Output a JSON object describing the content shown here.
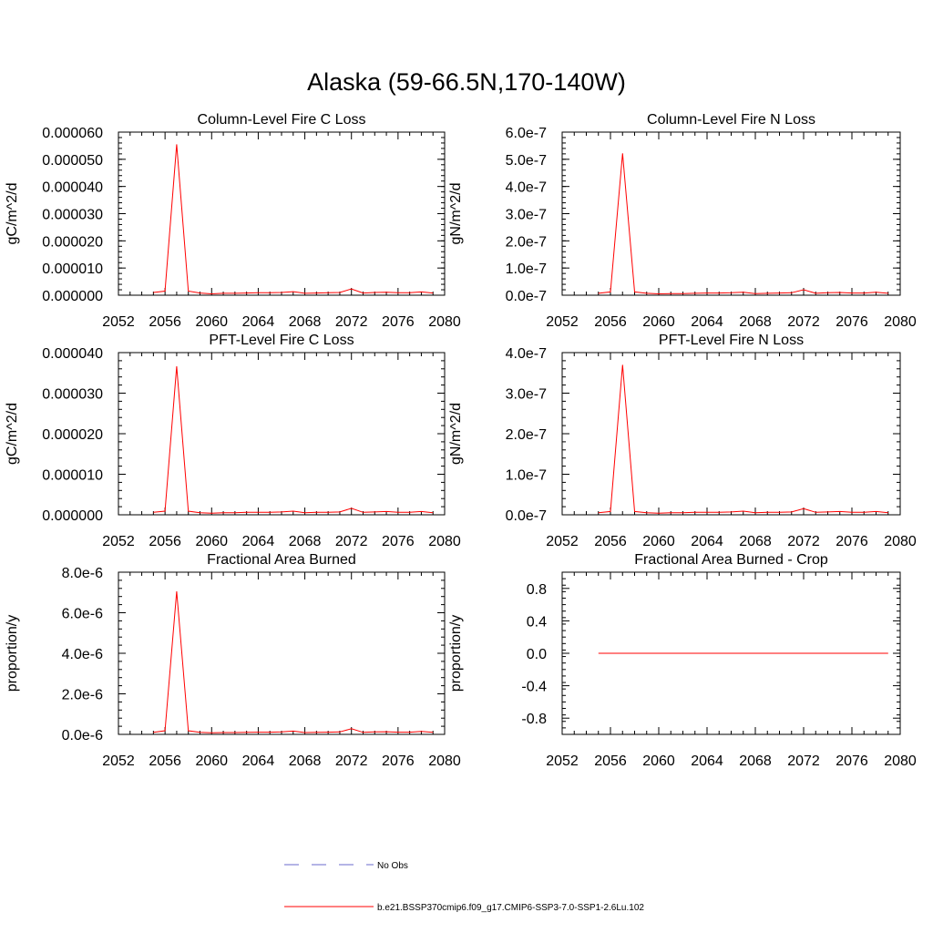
{
  "figure": {
    "title": "Alaska (59-66.5N,170-140W)",
    "legend": [
      {
        "label": "No Obs",
        "color": "#6a6acd",
        "style": "dashed"
      },
      {
        "label": "b.e21.BSSP370cmip6.f09_g17.CMIP6-SSP3-7.0-SSP1-2.6Lu.102",
        "color": "#ff0000",
        "style": "solid"
      }
    ]
  },
  "chart_data": [
    {
      "type": "line",
      "title": "Column-Level Fire C Loss",
      "ylabel": "gC/m^2/d",
      "xlim": [
        2052,
        2080
      ],
      "xticks": [
        "2052",
        "2056",
        "2060",
        "2064",
        "2068",
        "2072",
        "2076",
        "2080"
      ],
      "ylim": [
        0,
        6e-05
      ],
      "yticks": [
        "0.000000",
        "0.000010",
        "0.000020",
        "0.000030",
        "0.000040",
        "0.000050",
        "0.000060"
      ],
      "series": [
        {
          "color": "#ff0000",
          "x": [
            2055,
            2056,
            2057,
            2058,
            2059,
            2060,
            2061,
            2062,
            2063,
            2064,
            2065,
            2066,
            2067,
            2068,
            2069,
            2070,
            2071,
            2072,
            2073,
            2074,
            2075,
            2076,
            2077,
            2078,
            2079
          ],
          "y": [
            1e-06,
            1.5e-06,
            5.55e-05,
            1.5e-06,
            8e-07,
            5e-07,
            7e-07,
            7e-07,
            8e-07,
            9e-07,
            9e-07,
            1e-06,
            1.3e-06,
            7e-07,
            8e-07,
            9e-07,
            1e-06,
            2.3e-06,
            8e-07,
            1e-06,
            1.1e-06,
            9e-07,
            9e-07,
            1.2e-06,
            8e-07
          ]
        }
      ]
    },
    {
      "type": "line",
      "title": "Column-Level Fire N Loss",
      "ylabel": "gN/m^2/d",
      "xlim": [
        2052,
        2080
      ],
      "xticks": [
        "2052",
        "2056",
        "2060",
        "2064",
        "2068",
        "2072",
        "2076",
        "2080"
      ],
      "ylim": [
        0,
        6e-07
      ],
      "yticks": [
        "0.0e-7",
        "1.0e-7",
        "2.0e-7",
        "3.0e-7",
        "4.0e-7",
        "5.0e-7",
        "6.0e-7"
      ],
      "series": [
        {
          "color": "#ff0000",
          "x": [
            2055,
            2056,
            2057,
            2058,
            2059,
            2060,
            2061,
            2062,
            2063,
            2064,
            2065,
            2066,
            2067,
            2068,
            2069,
            2070,
            2071,
            2072,
            2073,
            2074,
            2075,
            2076,
            2077,
            2078,
            2079
          ],
          "y": [
            7e-09,
            1.2e-08,
            5.22e-07,
            1.2e-08,
            7e-09,
            5e-09,
            6e-09,
            6e-09,
            7e-09,
            8e-09,
            8e-09,
            9e-09,
            1.1e-08,
            6e-09,
            7e-09,
            8e-09,
            9e-09,
            2e-08,
            7e-09,
            9e-09,
            1e-08,
            8e-09,
            8e-09,
            1.1e-08,
            7e-09
          ]
        }
      ]
    },
    {
      "type": "line",
      "title": "PFT-Level Fire C Loss",
      "ylabel": "gC/m^2/d",
      "xlim": [
        2052,
        2080
      ],
      "xticks": [
        "2052",
        "2056",
        "2060",
        "2064",
        "2068",
        "2072",
        "2076",
        "2080"
      ],
      "ylim": [
        0,
        4e-05
      ],
      "yticks": [
        "0.000000",
        "0.000010",
        "0.000020",
        "0.000030",
        "0.000040"
      ],
      "series": [
        {
          "color": "#ff0000",
          "x": [
            2055,
            2056,
            2057,
            2058,
            2059,
            2060,
            2061,
            2062,
            2063,
            2064,
            2065,
            2066,
            2067,
            2068,
            2069,
            2070,
            2071,
            2072,
            2073,
            2074,
            2075,
            2076,
            2077,
            2078,
            2079
          ],
          "y": [
            6e-07,
            9e-07,
            3.66e-05,
            9e-07,
            5e-07,
            4e-07,
            5e-07,
            5e-07,
            6e-07,
            6e-07,
            6e-07,
            7e-07,
            9e-07,
            5e-07,
            6e-07,
            6e-07,
            7e-07,
            1.6e-06,
            6e-07,
            7e-07,
            8e-07,
            6e-07,
            6e-07,
            8e-07,
            5e-07
          ]
        }
      ]
    },
    {
      "type": "line",
      "title": "PFT-Level Fire N Loss",
      "ylabel": "gN/m^2/d",
      "xlim": [
        2052,
        2080
      ],
      "xticks": [
        "2052",
        "2056",
        "2060",
        "2064",
        "2068",
        "2072",
        "2076",
        "2080"
      ],
      "ylim": [
        0,
        4e-07
      ],
      "yticks": [
        "0.0e-7",
        "1.0e-7",
        "2.0e-7",
        "3.0e-7",
        "4.0e-7"
      ],
      "series": [
        {
          "color": "#ff0000",
          "x": [
            2055,
            2056,
            2057,
            2058,
            2059,
            2060,
            2061,
            2062,
            2063,
            2064,
            2065,
            2066,
            2067,
            2068,
            2069,
            2070,
            2071,
            2072,
            2073,
            2074,
            2075,
            2076,
            2077,
            2078,
            2079
          ],
          "y": [
            5e-09,
            8e-09,
            3.7e-07,
            8e-09,
            5e-09,
            4e-09,
            5e-09,
            5e-09,
            6e-09,
            6e-09,
            6e-09,
            7e-09,
            9e-09,
            5e-09,
            6e-09,
            6e-09,
            7e-09,
            1.5e-08,
            6e-09,
            7e-09,
            8e-09,
            6e-09,
            6e-09,
            8e-09,
            5e-09
          ]
        }
      ]
    },
    {
      "type": "line",
      "title": "Fractional Area Burned",
      "ylabel": "proportion/y",
      "xlim": [
        2052,
        2080
      ],
      "xticks": [
        "2052",
        "2056",
        "2060",
        "2064",
        "2068",
        "2072",
        "2076",
        "2080"
      ],
      "ylim": [
        0,
        8e-06
      ],
      "yticks": [
        "0.0e-6",
        "2.0e-6",
        "4.0e-6",
        "6.0e-6",
        "8.0e-6"
      ],
      "series": [
        {
          "color": "#ff0000",
          "x": [
            2055,
            2056,
            2057,
            2058,
            2059,
            2060,
            2061,
            2062,
            2063,
            2064,
            2065,
            2066,
            2067,
            2068,
            2069,
            2070,
            2071,
            2072,
            2073,
            2074,
            2075,
            2076,
            2077,
            2078,
            2079
          ],
          "y": [
            1e-07,
            1.8e-07,
            7.05e-06,
            1.8e-07,
            1e-07,
            8e-08,
            9e-08,
            9e-08,
            1e-07,
            1.1e-07,
            1.1e-07,
            1.2e-07,
            1.6e-07,
            9e-08,
            1e-07,
            1.1e-07,
            1.2e-07,
            2.8e-07,
            1e-07,
            1.2e-07,
            1.3e-07,
            1.1e-07,
            1.1e-07,
            1.5e-07,
            1e-07
          ]
        }
      ]
    },
    {
      "type": "line",
      "title": "Fractional Area Burned - Crop",
      "ylabel": "proportion/y",
      "xlim": [
        2052,
        2080
      ],
      "xticks": [
        "2052",
        "2056",
        "2060",
        "2064",
        "2068",
        "2072",
        "2076",
        "2080"
      ],
      "ylim": [
        -1,
        1
      ],
      "yticks": [
        "-0.8",
        "-0.4",
        "0.0",
        "0.4",
        "0.8"
      ],
      "ytickvals": [
        -0.8,
        -0.4,
        0,
        0.4,
        0.8
      ],
      "series": [
        {
          "color": "#ff0000",
          "x": [
            2055,
            2056,
            2057,
            2058,
            2059,
            2060,
            2061,
            2062,
            2063,
            2064,
            2065,
            2066,
            2067,
            2068,
            2069,
            2070,
            2071,
            2072,
            2073,
            2074,
            2075,
            2076,
            2077,
            2078,
            2079
          ],
          "y": [
            0,
            0,
            0,
            0,
            0,
            0,
            0,
            0,
            0,
            0,
            0,
            0,
            0,
            0,
            0,
            0,
            0,
            0,
            0,
            0,
            0,
            0,
            0,
            0,
            0
          ]
        }
      ]
    }
  ]
}
